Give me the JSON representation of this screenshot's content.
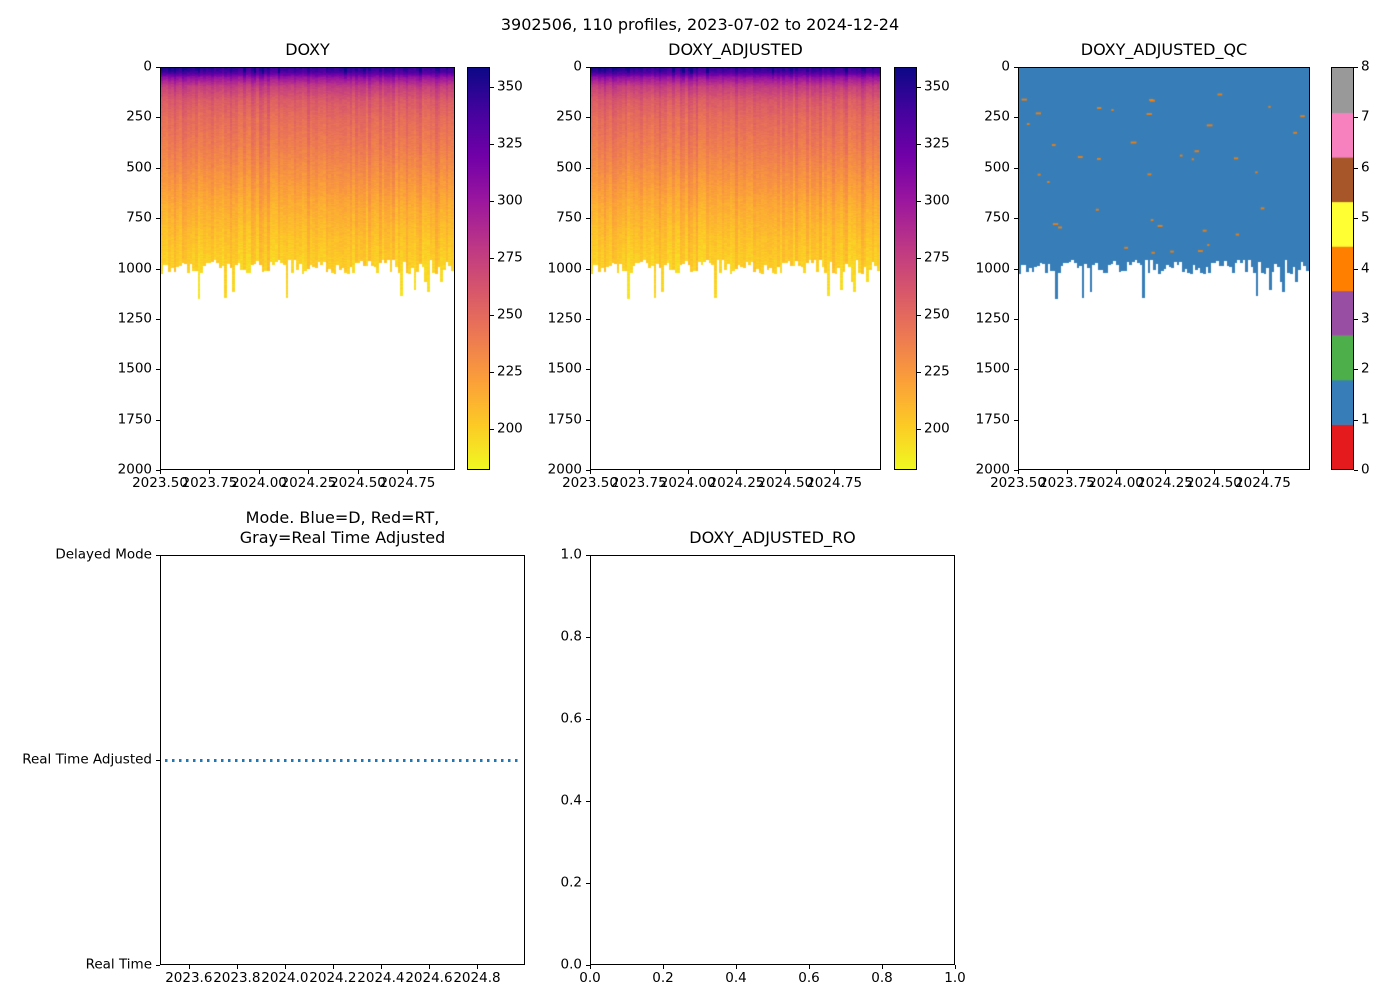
{
  "figure": {
    "title": "3902506, 110 profiles, 2023-07-02 to 2024-12-24",
    "background": "#ffffff"
  },
  "chart_data": [
    {
      "id": "doxy",
      "type": "heatmap",
      "title": "DOXY",
      "x_ticks": [
        2023.5,
        2023.75,
        2024.0,
        2024.25,
        2024.5,
        2024.75
      ],
      "x_tick_labels": [
        "2023.50",
        "2023.75",
        "2024.00",
        "2024.25",
        "2024.50",
        "2024.75"
      ],
      "x_range": [
        2023.5,
        2024.99
      ],
      "y_ticks": [
        0,
        250,
        500,
        750,
        1000,
        1250,
        1500,
        1750,
        2000
      ],
      "y_range": [
        0,
        2000
      ],
      "y_inverted": true,
      "n_profiles": 110,
      "depth_value_profile": [
        [
          0,
          348
        ],
        [
          20,
          336
        ],
        [
          45,
          305
        ],
        [
          90,
          278
        ],
        [
          160,
          260
        ],
        [
          250,
          250
        ],
        [
          400,
          240
        ],
        [
          550,
          228
        ],
        [
          700,
          216
        ],
        [
          850,
          207
        ],
        [
          1000,
          200
        ],
        [
          1160,
          196
        ]
      ],
      "profile_depth_typical": [
        955,
        1030
      ],
      "profile_depth_deep": [
        1060,
        1160
      ],
      "deep_profile_fraction": 0.1,
      "seed": 20230702,
      "colorbar": {
        "ticks": [
          200,
          225,
          250,
          275,
          300,
          325,
          350
        ],
        "vmin": 182,
        "vmax": 359,
        "gradient_bottom_to_top": [
          "#f0f921",
          "#fdca26",
          "#fb9f3a",
          "#ed7953",
          "#d8576b",
          "#bd3786",
          "#9c179e",
          "#7201a8",
          "#46039f",
          "#0d0887"
        ]
      }
    },
    {
      "id": "doxy_adjusted",
      "type": "heatmap",
      "title": "DOXY_ADJUSTED",
      "x_ticks": [
        2023.5,
        2023.75,
        2024.0,
        2024.25,
        2024.5,
        2024.75
      ],
      "x_tick_labels": [
        "2023.50",
        "2023.75",
        "2024.00",
        "2024.25",
        "2024.50",
        "2024.75"
      ],
      "x_range": [
        2023.5,
        2024.99
      ],
      "y_ticks": [
        0,
        250,
        500,
        750,
        1000,
        1250,
        1500,
        1750,
        2000
      ],
      "y_range": [
        0,
        2000
      ],
      "y_inverted": true,
      "n_profiles": 110,
      "depth_value_profile": [
        [
          0,
          348
        ],
        [
          20,
          336
        ],
        [
          45,
          305
        ],
        [
          90,
          278
        ],
        [
          160,
          260
        ],
        [
          250,
          250
        ],
        [
          400,
          240
        ],
        [
          550,
          228
        ],
        [
          700,
          216
        ],
        [
          850,
          207
        ],
        [
          1000,
          200
        ],
        [
          1160,
          196
        ]
      ],
      "profile_depth_typical": [
        955,
        1030
      ],
      "profile_depth_deep": [
        1060,
        1160
      ],
      "deep_profile_fraction": 0.1,
      "seed": 20230702,
      "colorbar": {
        "ticks": [
          200,
          225,
          250,
          275,
          300,
          325,
          350
        ],
        "vmin": 182,
        "vmax": 359,
        "gradient_bottom_to_top": [
          "#f0f921",
          "#fdca26",
          "#fb9f3a",
          "#ed7953",
          "#d8576b",
          "#bd3786",
          "#9c179e",
          "#7201a8",
          "#46039f",
          "#0d0887"
        ]
      }
    },
    {
      "id": "doxy_adjusted_qc",
      "type": "heatmap-categorical",
      "title": "DOXY_ADJUSTED_QC",
      "x_ticks": [
        2023.5,
        2023.75,
        2024.0,
        2024.25,
        2024.5,
        2024.75
      ],
      "x_tick_labels": [
        "2023.50",
        "2023.75",
        "2024.00",
        "2024.25",
        "2024.50",
        "2024.75"
      ],
      "x_range": [
        2023.5,
        2024.99
      ],
      "y_ticks": [
        0,
        250,
        500,
        750,
        1000,
        1250,
        1500,
        1750,
        2000
      ],
      "y_range": [
        0,
        2000
      ],
      "y_inverted": true,
      "n_profiles": 110,
      "profile_depth_typical": [
        955,
        1030
      ],
      "profile_depth_deep": [
        1060,
        1160
      ],
      "deep_profile_fraction": 0.1,
      "dominant_qc_value": 1,
      "scattered_qc_value": 4,
      "scatter_count": 38,
      "seed": 20230702,
      "colorbar": {
        "ticks": [
          0,
          1,
          2,
          3,
          4,
          5,
          6,
          7,
          8
        ],
        "colors_bottom_to_top": [
          "#e41a1c",
          "#377eb8",
          "#4daf4a",
          "#984ea3",
          "#ff7f00",
          "#ffff33",
          "#a65628",
          "#f781bf",
          "#999999"
        ]
      }
    },
    {
      "id": "mode",
      "type": "line",
      "title_lines": [
        "Mode. Blue=D, Red=RT,",
        "Gray=Real Time Adjusted"
      ],
      "y_categories": [
        "Real Time",
        "Real Time Adjusted",
        "Delayed Mode"
      ],
      "x_ticks": [
        2023.6,
        2023.8,
        2024.0,
        2024.2,
        2024.4,
        2024.6,
        2024.8
      ],
      "x_tick_labels": [
        "2023.6",
        "2023.8",
        "2024.0",
        "2024.2",
        "2024.4",
        "2024.6",
        "2024.8"
      ],
      "x_range": [
        2023.48,
        2025.0
      ],
      "series": [
        {
          "name": "mode",
          "color": "#1f77b4",
          "linestyle": "dotted",
          "y_category": "Real Time Adjusted",
          "x_start": 2023.5,
          "x_end": 2024.98
        }
      ]
    },
    {
      "id": "doxy_adjusted_ro",
      "type": "empty",
      "title": "DOXY_ADJUSTED_RO",
      "x_ticks": [
        0.0,
        0.2,
        0.4,
        0.6,
        0.8,
        1.0
      ],
      "x_tick_labels": [
        "0.0",
        "0.2",
        "0.4",
        "0.6",
        "0.8",
        "1.0"
      ],
      "y_ticks": [
        0.0,
        0.2,
        0.4,
        0.6,
        0.8,
        1.0
      ],
      "y_tick_labels": [
        "0.0",
        "0.2",
        "0.4",
        "0.6",
        "0.8",
        "1.0"
      ],
      "x_range": [
        0,
        1
      ],
      "y_range": [
        0,
        1
      ]
    }
  ]
}
